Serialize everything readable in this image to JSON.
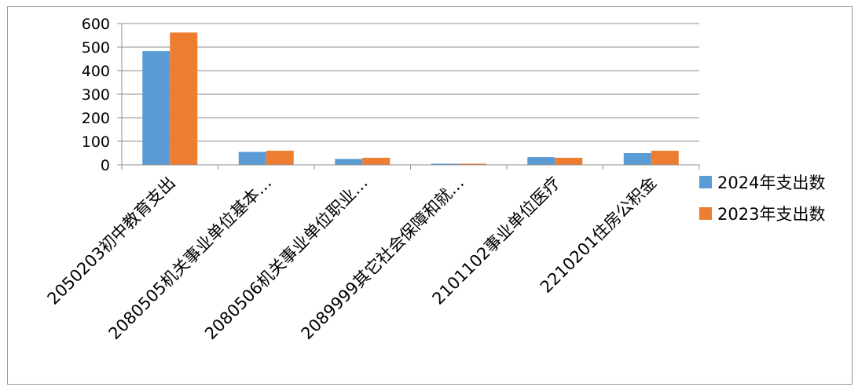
{
  "chart_data": {
    "type": "bar",
    "categories": [
      "2050203初中教育支出",
      "2080505机关事业单位基本…",
      "2080506机关事业单位职业…",
      "2089999其它社会保障和就…",
      "2101102事业单位医疗",
      "2210201住房公积金"
    ],
    "series": [
      {
        "name": "2024年支出数",
        "color": "#5B9BD5",
        "values": [
          483,
          55,
          25,
          5,
          33,
          50
        ]
      },
      {
        "name": "2023年支出数",
        "color": "#ED7D31",
        "values": [
          562,
          60,
          30,
          5,
          30,
          60
        ]
      }
    ],
    "ylim": [
      0,
      600
    ],
    "yticks": [
      "0",
      "100",
      "200",
      "300",
      "400",
      "500",
      "600"
    ],
    "grid": true,
    "legend": "right"
  }
}
